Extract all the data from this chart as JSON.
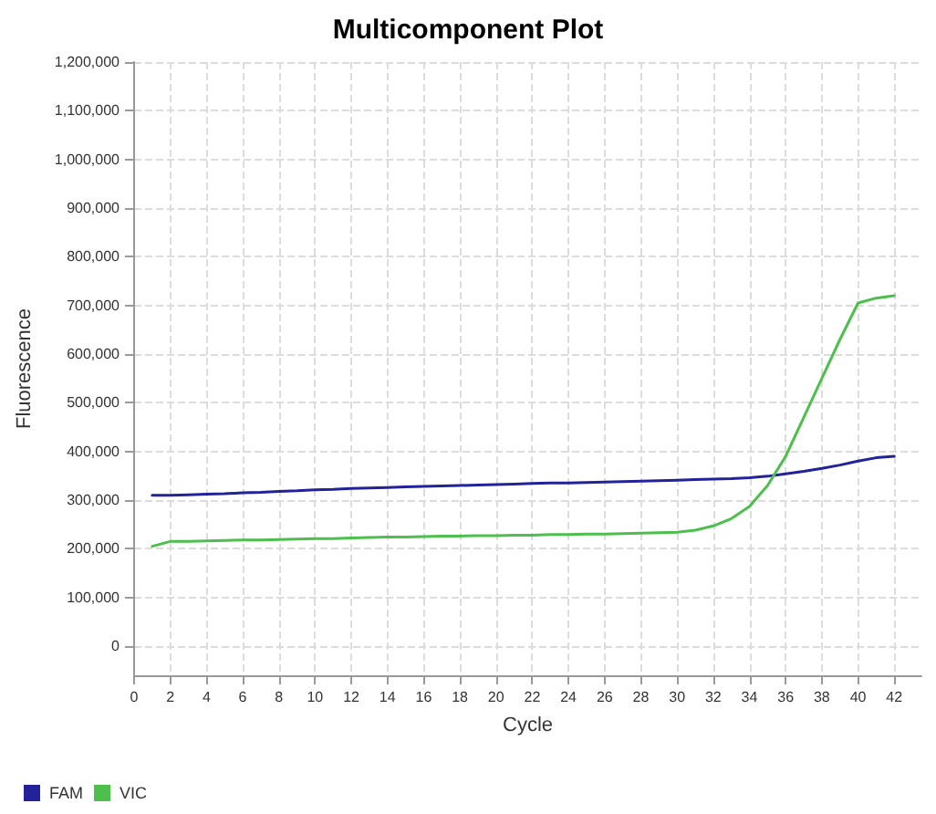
{
  "chart_data": {
    "type": "line",
    "title": "Multicomponent Plot",
    "xlabel": "Cycle",
    "ylabel": "Fluorescence",
    "x": [
      1,
      2,
      3,
      4,
      5,
      6,
      7,
      8,
      9,
      10,
      11,
      12,
      13,
      14,
      15,
      16,
      17,
      18,
      19,
      20,
      21,
      22,
      23,
      24,
      25,
      26,
      27,
      28,
      29,
      30,
      31,
      32,
      33,
      34,
      35,
      36,
      37,
      38,
      39,
      40,
      41,
      42
    ],
    "series": [
      {
        "name": "FAM",
        "color": "#22229a",
        "values": [
          310000,
          310000,
          311000,
          312000,
          313000,
          315000,
          316000,
          318000,
          319000,
          321000,
          322000,
          324000,
          325000,
          326000,
          327000,
          328000,
          329000,
          330000,
          331000,
          332000,
          333000,
          334000,
          335000,
          335000,
          336000,
          337000,
          338000,
          339000,
          340000,
          341000,
          342000,
          343000,
          344000,
          346000,
          349000,
          354000,
          359000,
          365000,
          372000,
          380000,
          387000,
          390000
        ]
      },
      {
        "name": "VIC",
        "color": "#4cbf4c",
        "values": [
          205000,
          215000,
          215000,
          216000,
          217000,
          218000,
          218000,
          219000,
          220000,
          221000,
          221000,
          222000,
          223000,
          224000,
          224000,
          225000,
          226000,
          226000,
          227000,
          227000,
          228000,
          228000,
          229000,
          229000,
          230000,
          230000,
          231000,
          232000,
          233000,
          234000,
          238000,
          247000,
          262000,
          287000,
          330000,
          390000,
          470000,
          550000,
          630000,
          705000,
          715000,
          720000
        ]
      }
    ],
    "xlim": [
      0,
      43.5
    ],
    "xticks": [
      0,
      2,
      4,
      6,
      8,
      10,
      12,
      14,
      16,
      18,
      20,
      22,
      24,
      26,
      28,
      30,
      32,
      34,
      36,
      38,
      40,
      42
    ],
    "ylim": [
      -60000,
      1200000
    ],
    "yticks": [
      0,
      {
        "value": 100000,
        "label": "100,000"
      },
      {
        "value": 200000,
        "label": "200,000"
      },
      {
        "value": 300000,
        "label": "300,000"
      },
      {
        "value": 400000,
        "label": "400,000"
      },
      {
        "value": 500000,
        "label": "500,000"
      },
      {
        "value": 600000,
        "label": "600,000"
      },
      {
        "value": 700000,
        "label": "700,000"
      },
      {
        "value": 800000,
        "label": "800,000"
      },
      {
        "value": 900000,
        "label": "900,000"
      },
      {
        "value": 1000000,
        "label": "1,000,000"
      },
      {
        "value": 1100000,
        "label": "1,100,000"
      },
      {
        "value": 1200000,
        "label": "1,200,000"
      }
    ],
    "grid": true,
    "legend": "bottom left",
    "marker": "none",
    "line_style": "solid"
  }
}
